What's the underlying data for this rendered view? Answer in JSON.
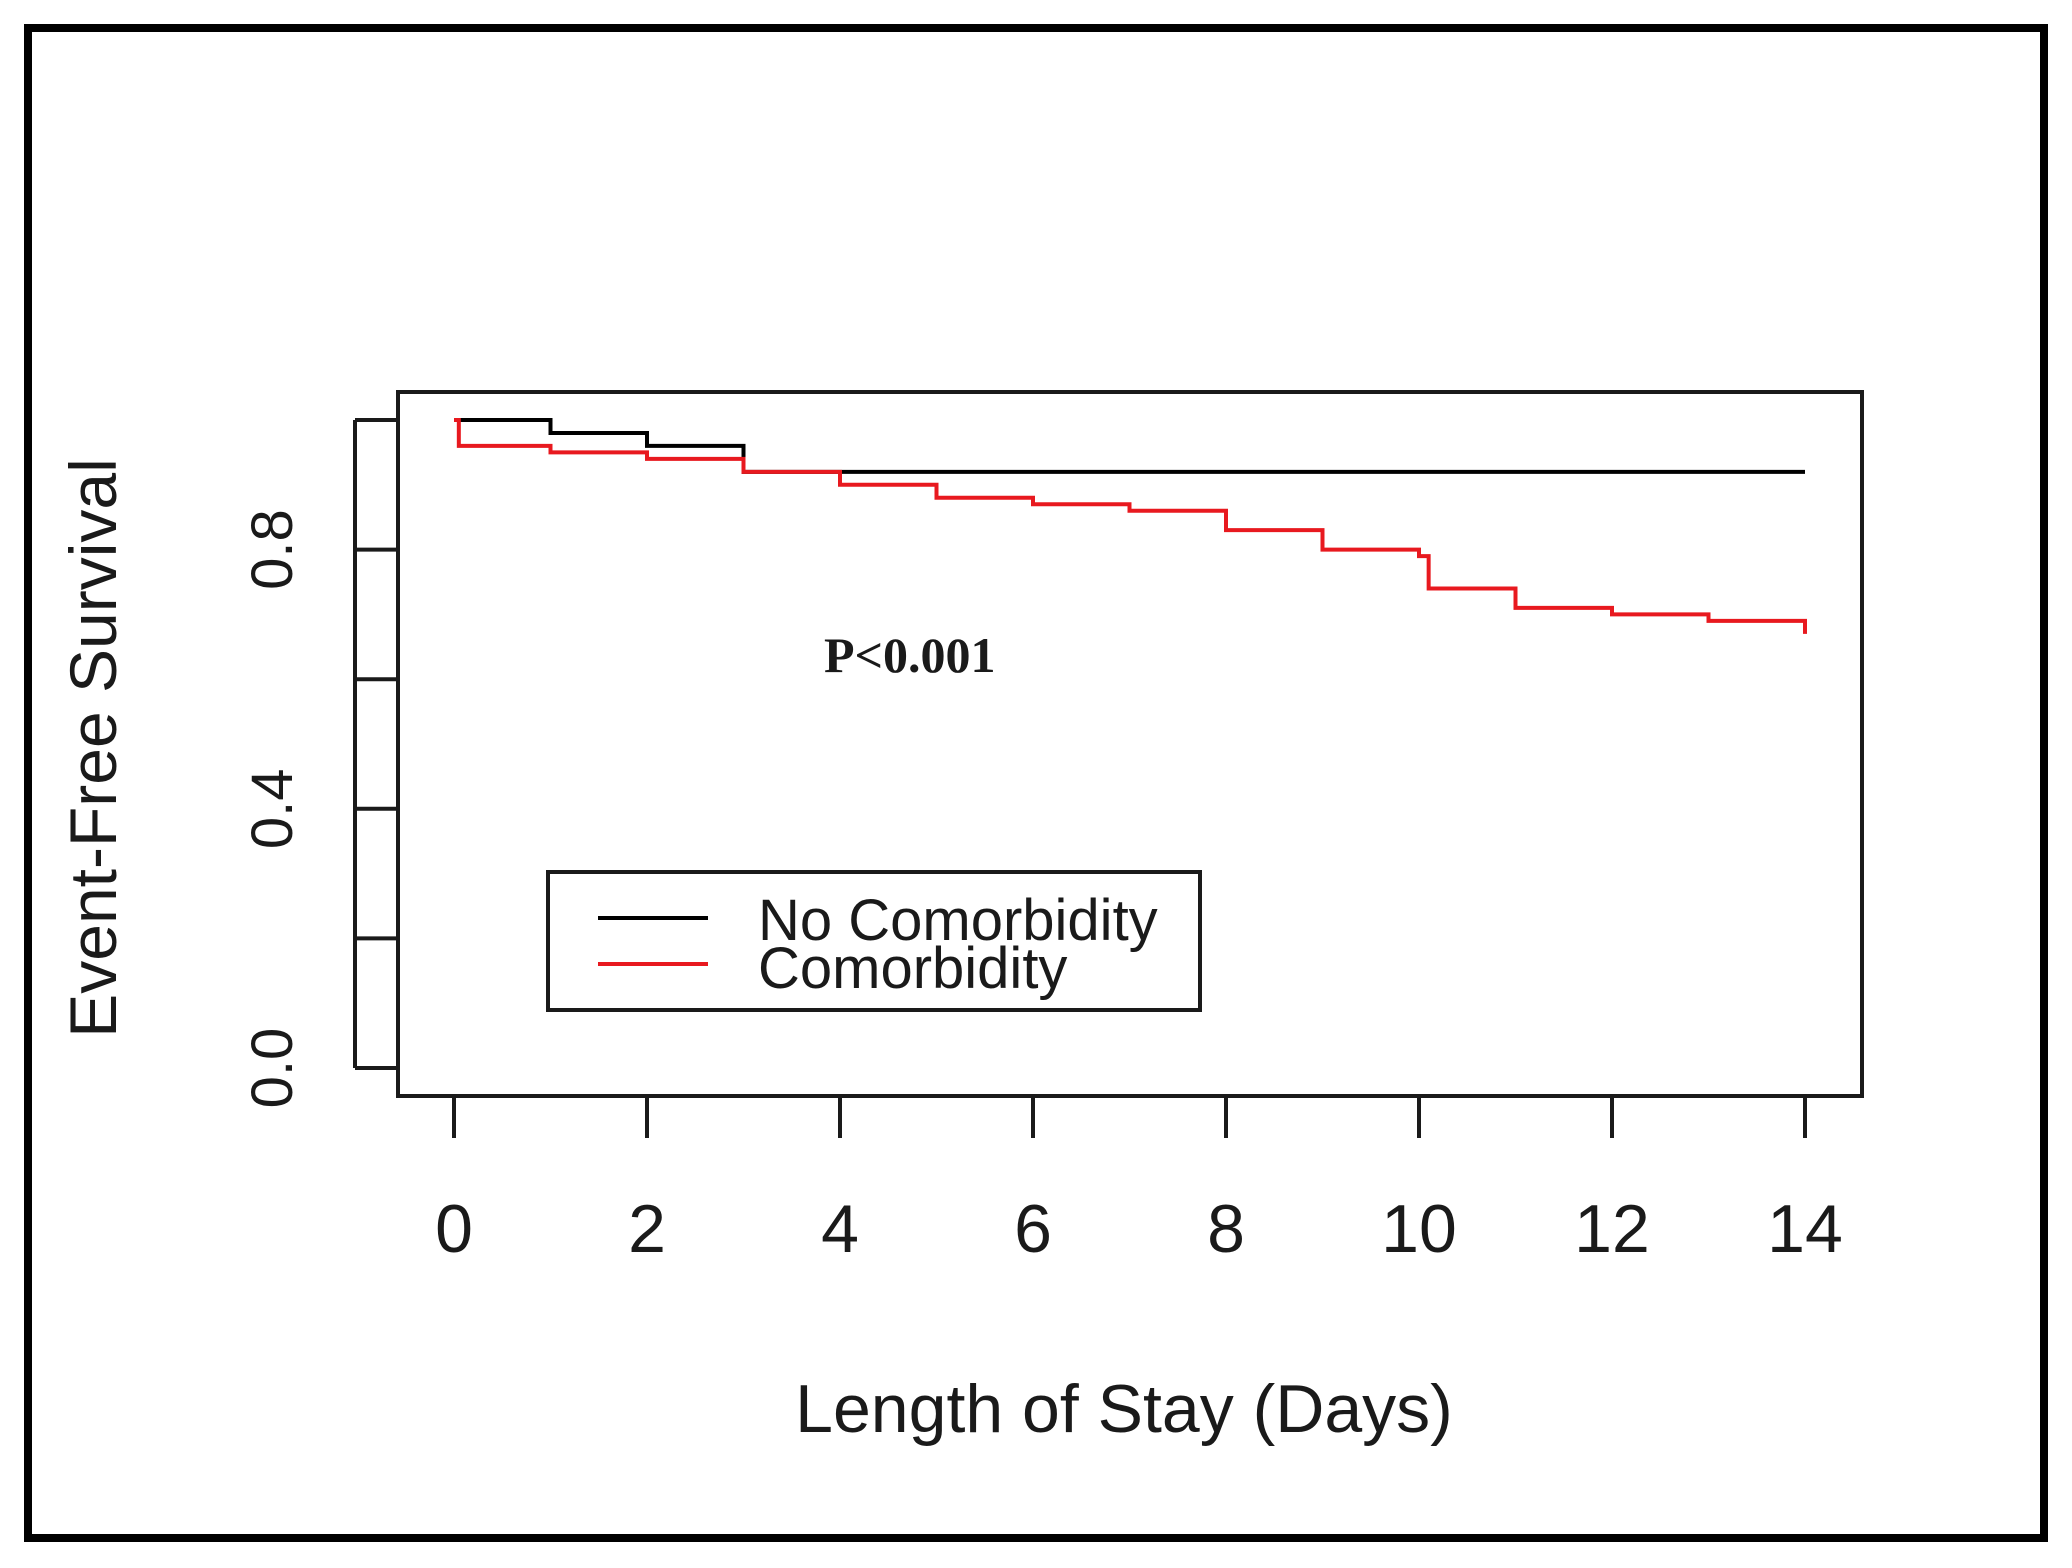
{
  "chart_data": {
    "type": "line",
    "subtype": "kaplan-meier step",
    "title": "",
    "xlabel": "Length of Stay (Days)",
    "ylabel": "Event-Free Survival",
    "xlim": [
      0,
      14
    ],
    "ylim": [
      0,
      1
    ],
    "x_ticks": [
      0,
      2,
      4,
      6,
      8,
      10,
      12,
      14
    ],
    "x_tick_labels": [
      "0",
      "2",
      "4",
      "6",
      "8",
      "10",
      "12",
      "14"
    ],
    "y_ticks": [
      0.0,
      0.2,
      0.4,
      0.6,
      0.8,
      1.0
    ],
    "y_tick_labels": [
      "0.0",
      "0.4",
      "0.8"
    ],
    "y_labeled_ticks": [
      0.0,
      0.4,
      0.8
    ],
    "grid": false,
    "legend_position": "lower-left",
    "annotation": "P<0.001",
    "series": [
      {
        "name": "No Comorbidity",
        "color": "#000000",
        "x": [
          0,
          1,
          2,
          3,
          14
        ],
        "y": [
          1.0,
          0.98,
          0.96,
          0.92,
          0.92
        ]
      },
      {
        "name": "Comorbidity",
        "color": "#e8191f",
        "x": [
          0,
          0.05,
          1,
          2,
          3,
          4,
          5,
          6,
          7,
          8,
          9,
          10,
          10.1,
          11,
          12,
          13,
          14
        ],
        "y": [
          1.0,
          0.96,
          0.95,
          0.94,
          0.92,
          0.9,
          0.88,
          0.87,
          0.86,
          0.83,
          0.8,
          0.79,
          0.74,
          0.71,
          0.7,
          0.69,
          0.67
        ]
      }
    ]
  }
}
